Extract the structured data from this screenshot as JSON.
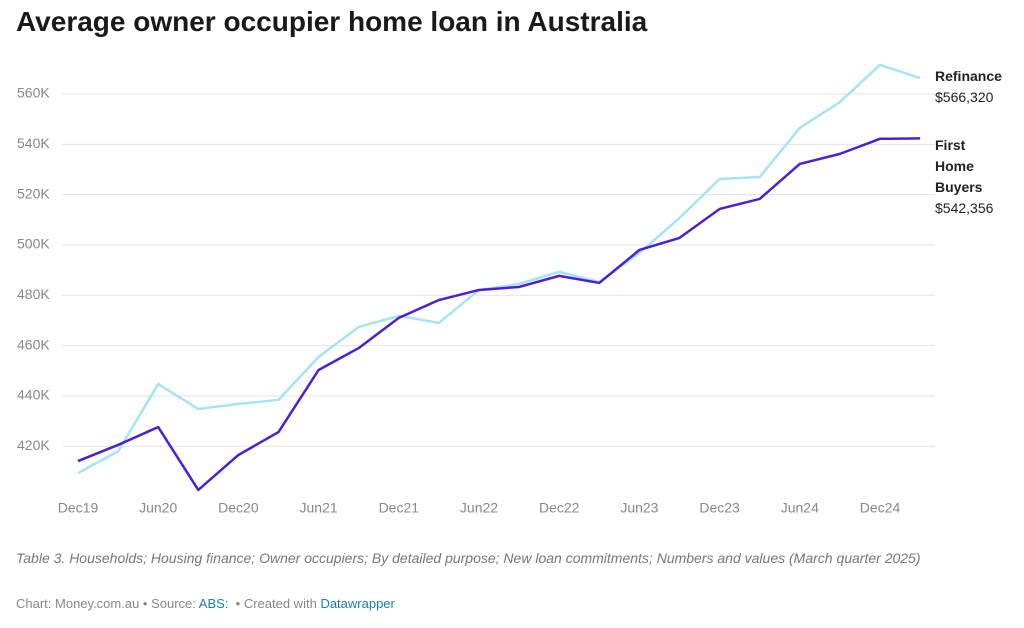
{
  "chart_data": {
    "type": "line",
    "title": "Average owner occupier home loan in Australia",
    "categories": [
      "Dec19",
      null,
      "Jun20",
      null,
      "Dec20",
      null,
      "Jun21",
      null,
      "Dec21",
      null,
      "Jun22",
      null,
      "Dec22",
      null,
      "Jun23",
      null,
      "Dec23",
      null,
      "Jun24",
      null,
      "Dec24",
      null
    ],
    "series": [
      {
        "name": "Refinance",
        "color": "#a6e3f4",
        "values": [
          409300,
          418000,
          444700,
          434800,
          436800,
          438400,
          455500,
          467400,
          471800,
          469000,
          482100,
          484500,
          489300,
          485300,
          496800,
          510700,
          526200,
          527000,
          546500,
          556800,
          571600,
          566320
        ],
        "value_labels": [
          null,
          null,
          null,
          null,
          null,
          null,
          null,
          null,
          null,
          null,
          null,
          null,
          null,
          null,
          null,
          null,
          null,
          null,
          null,
          null,
          null,
          "$566,320"
        ]
      },
      {
        "name": "First Home Buyers",
        "color": "#4b1fd6",
        "values": [
          414100,
          420500,
          427600,
          402600,
          416500,
          425600,
          450300,
          459000,
          471000,
          478100,
          482100,
          483300,
          487700,
          484900,
          498000,
          502800,
          514300,
          518300,
          532200,
          536200,
          542200,
          542356
        ],
        "value_labels": [
          null,
          null,
          null,
          null,
          null,
          null,
          null,
          null,
          null,
          null,
          null,
          null,
          null,
          null,
          null,
          null,
          null,
          null,
          null,
          null,
          null,
          "$542,356"
        ]
      }
    ],
    "ylim": [
      400000,
      580000
    ],
    "yticks": [
      {
        "value": 420000,
        "label": "420K"
      },
      {
        "value": 440000,
        "label": "440K"
      },
      {
        "value": 460000,
        "label": "460K"
      },
      {
        "value": 480000,
        "label": "480K"
      },
      {
        "value": 500000,
        "label": "500K"
      },
      {
        "value": 520000,
        "label": "520K"
      },
      {
        "value": 540000,
        "label": "540K"
      },
      {
        "value": 560000,
        "label": "560K"
      }
    ],
    "grid": true,
    "notes": "Table 3. Households; Housing finance; Owner occupiers; By detailed purpose; New loan commitments; Numbers and values (March quarter 2025)",
    "footer": {
      "chart": "Chart: Money.com.au • Source:",
      "source": "ABS:",
      "created": "• Created with",
      "tool": "Datawrapper"
    }
  }
}
